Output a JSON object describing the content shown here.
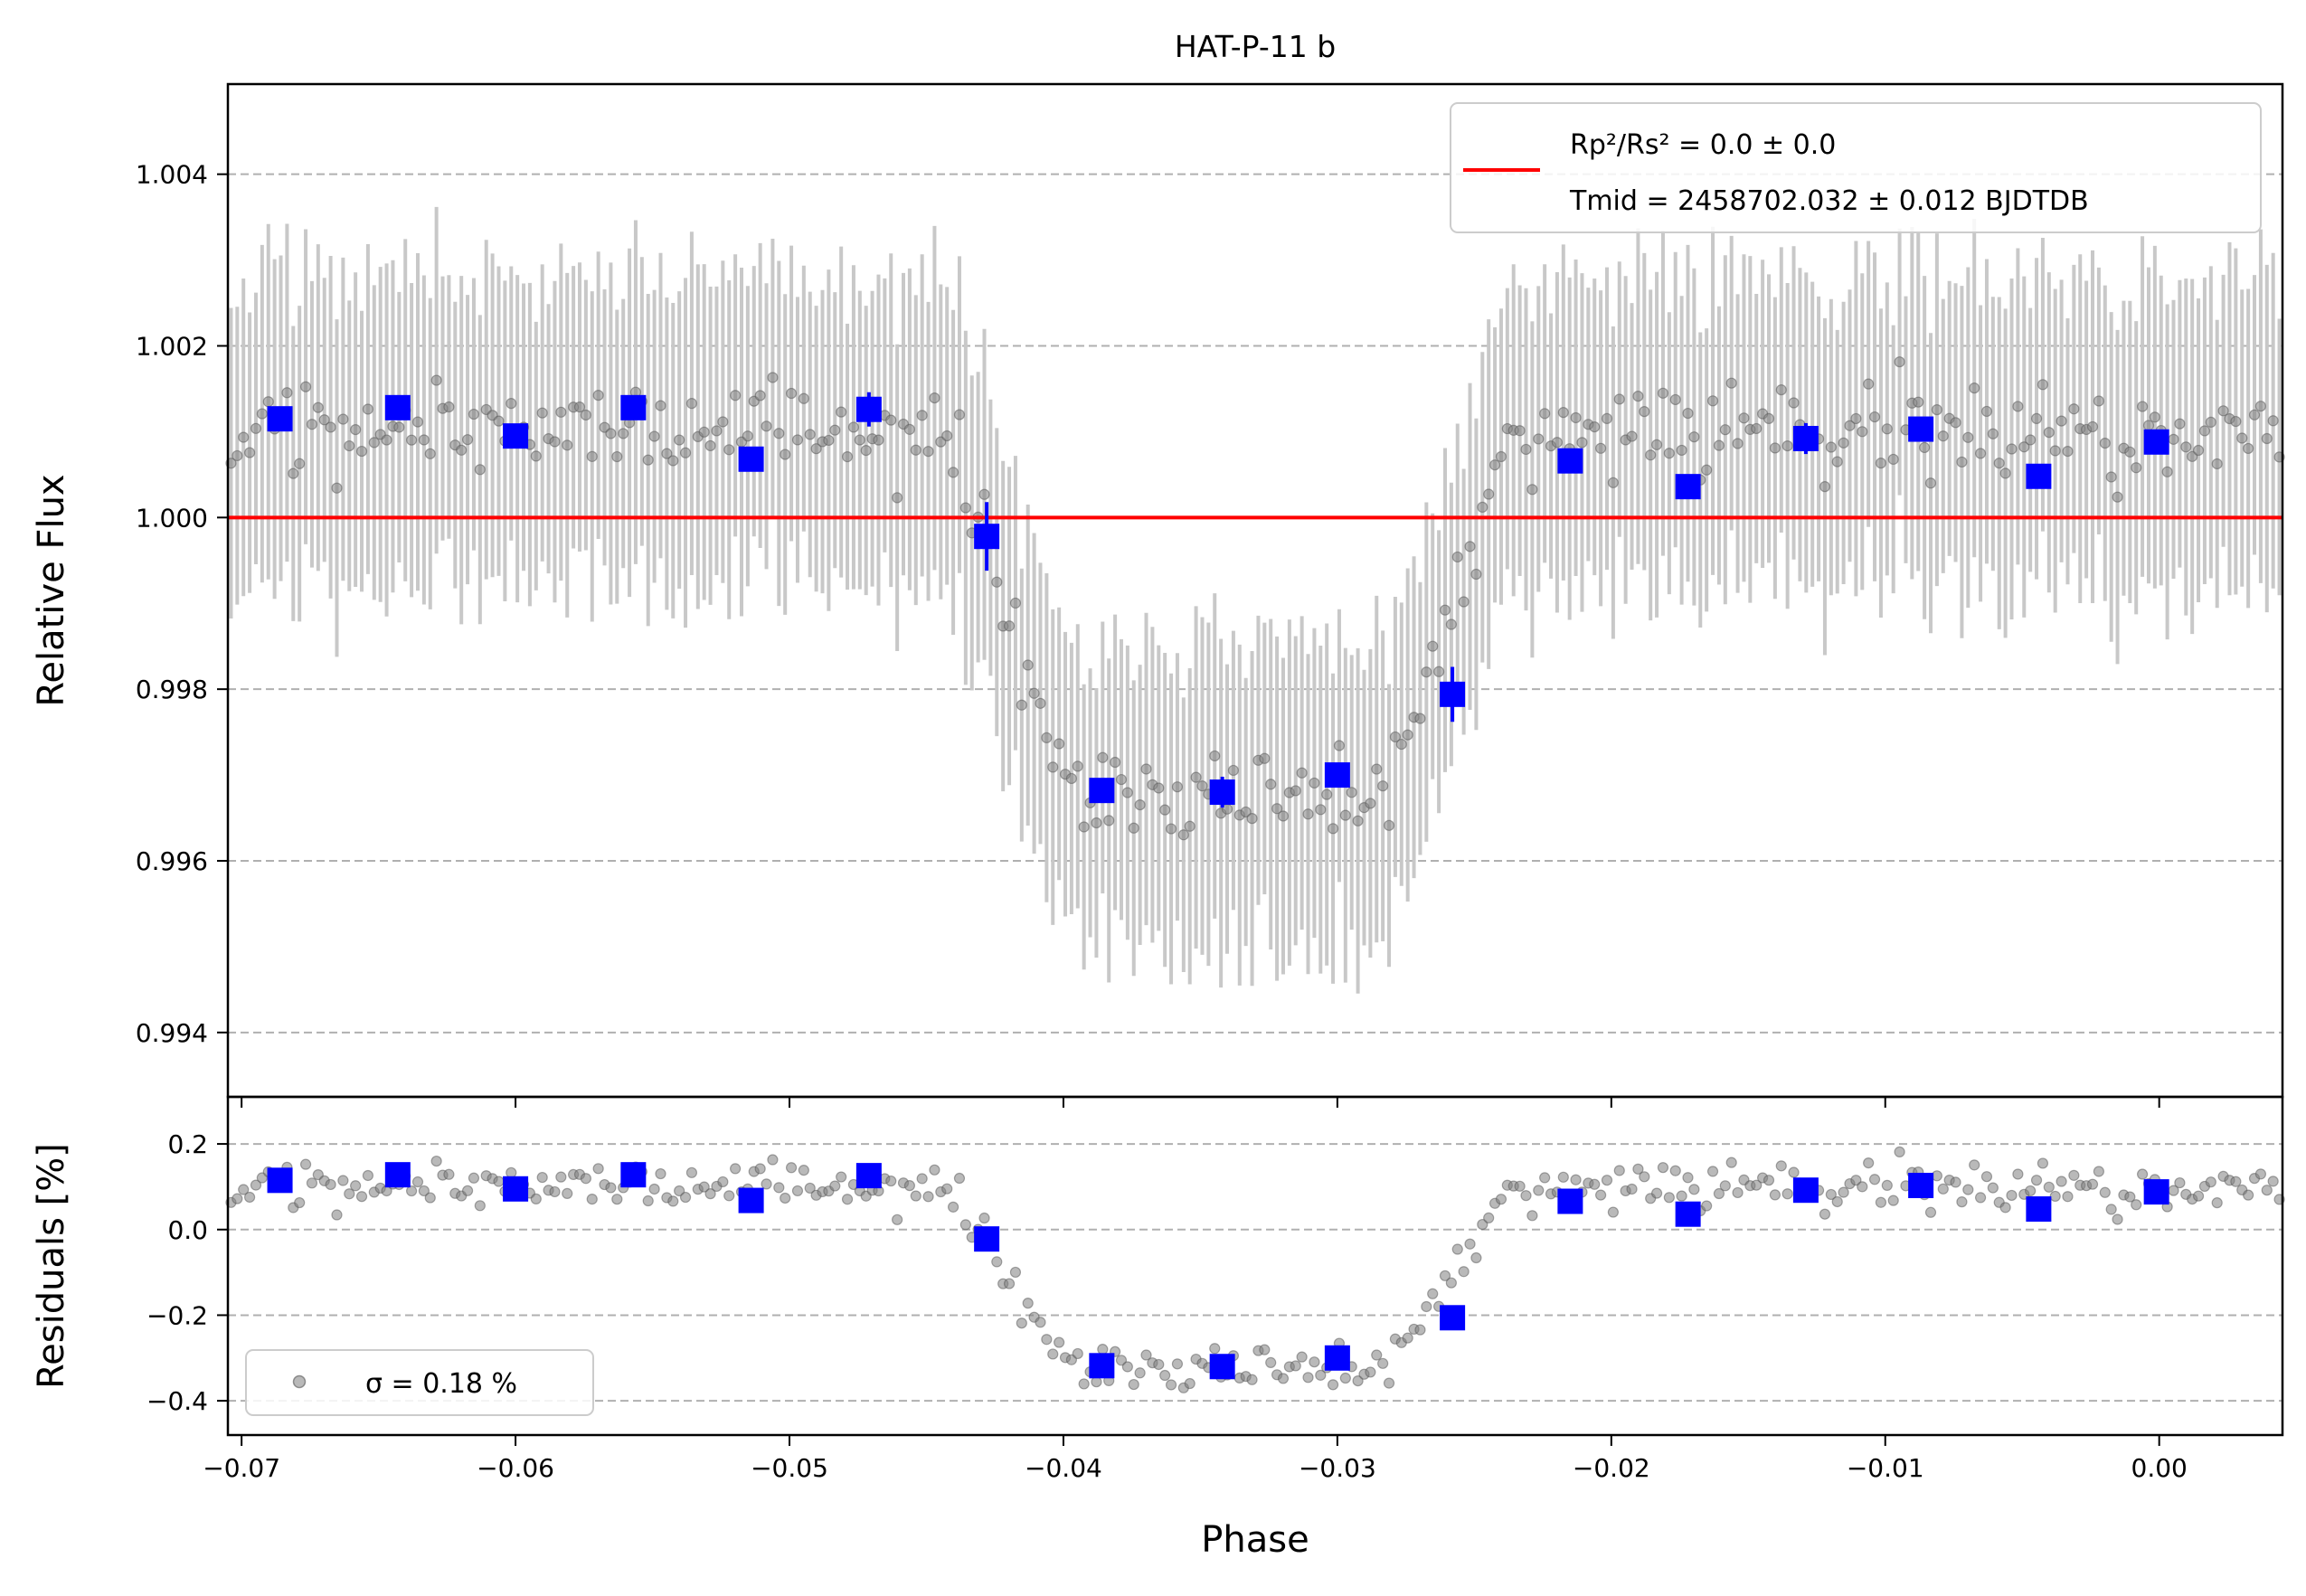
{
  "chart_data": [
    {
      "type": "scatter",
      "panel": "flux",
      "title": "HAT-P-11 b",
      "xlabel": "",
      "ylabel": "Relative Flux",
      "xlim": [
        -0.0705,
        0.0045
      ],
      "ylim": [
        0.99325,
        1.00505
      ],
      "grid": "y-dashed",
      "legend_position": "upper-right",
      "yticks": [
        0.994,
        0.996,
        0.998,
        1.0,
        1.002,
        1.004
      ],
      "ytick_labels": [
        "0.994",
        "0.996",
        "0.998",
        "1.000",
        "1.002",
        "1.004"
      ],
      "legend": {
        "line1": "Rp²/Rs² = 0.0 ± 0.0",
        "line2": "Tmid = 2458702.032 ± 0.012 BJDTDB"
      },
      "model": {
        "y": 1.0,
        "color": "#ff0000"
      },
      "binned": {
        "color": "#0000ff",
        "x": [
          -0.0686,
          -0.0643,
          -0.06,
          -0.0557,
          -0.0514,
          -0.0471,
          -0.0428,
          -0.0386,
          -0.0342,
          -0.03,
          -0.0258,
          -0.0215,
          -0.0172,
          -0.0129,
          -0.0087,
          -0.0044,
          -0.0001
        ],
        "y": [
          1.00115,
          1.00128,
          1.00095,
          1.00128,
          1.00068,
          1.00126,
          0.99978,
          0.99682,
          0.9968,
          0.997,
          0.99794,
          1.00066,
          1.00036,
          1.00092,
          1.00103,
          1.00048,
          1.00088
        ],
        "yerr": [
          0.0001,
          0.0001,
          0.0001,
          0.0001,
          0.0001,
          0.0002,
          0.0004,
          0.0001,
          0.00018,
          0.00013,
          0.00032,
          0.0001,
          0.00012,
          0.00018,
          0.00013,
          0.0001,
          0.0001
        ]
      },
      "raw": {
        "marker_color": "#808080",
        "errorbar_color": "#c8c8c8",
        "yerr": 0.0018
      }
    },
    {
      "type": "scatter",
      "panel": "residuals",
      "title": "",
      "xlabel": "Phase",
      "ylabel": "Residuals [%]",
      "xlim": [
        -0.0705,
        0.0045
      ],
      "ylim": [
        -0.48,
        0.31
      ],
      "grid": "y-dashed",
      "legend_position": "lower-left",
      "xticks": [
        -0.07,
        -0.06,
        -0.05,
        -0.04,
        -0.03,
        -0.02,
        -0.01,
        0.0
      ],
      "xtick_labels": [
        "−0.07",
        "−0.06",
        "−0.05",
        "−0.04",
        "−0.03",
        "−0.02",
        "−0.01",
        "0.00"
      ],
      "yticks": [
        -0.4,
        -0.2,
        0.0,
        0.2
      ],
      "ytick_labels": [
        "−0.4",
        "−0.2",
        "0.0",
        "0.2"
      ],
      "legend": {
        "line1": "σ = 0.18 %"
      },
      "binned": {
        "color": "#0000ff",
        "x": [
          -0.0686,
          -0.0643,
          -0.06,
          -0.0557,
          -0.0514,
          -0.0471,
          -0.0428,
          -0.0386,
          -0.0342,
          -0.03,
          -0.0258,
          -0.0215,
          -0.0172,
          -0.0129,
          -0.0087,
          -0.0044,
          -0.0001
        ],
        "y": [
          0.115,
          0.128,
          0.095,
          0.128,
          0.068,
          0.126,
          -0.022,
          -0.318,
          -0.32,
          -0.3,
          -0.206,
          0.066,
          0.036,
          0.092,
          0.103,
          0.048,
          0.088
        ]
      },
      "raw": {
        "marker_color": "#808080"
      }
    }
  ]
}
